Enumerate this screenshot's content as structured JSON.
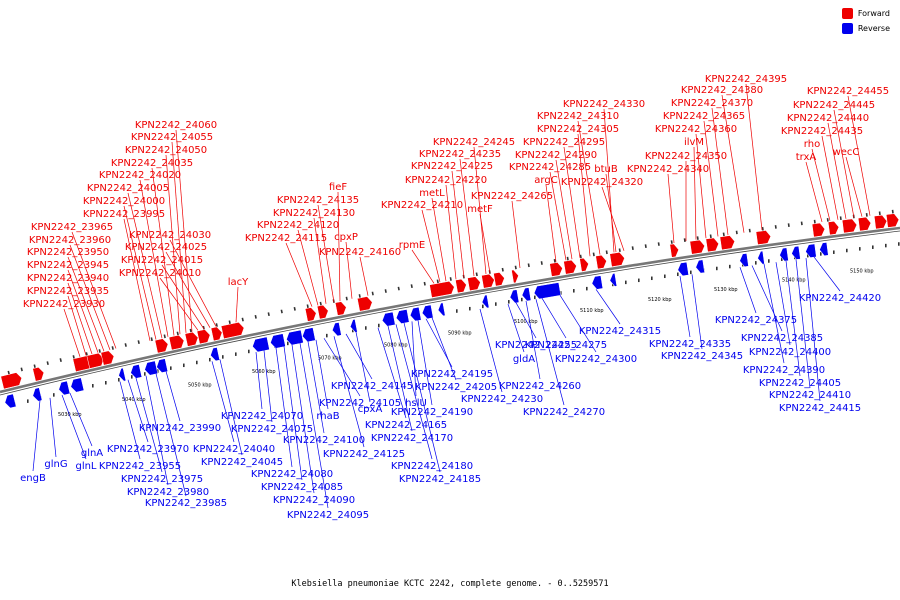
{
  "legend": [
    {
      "label": "Forward",
      "color": "#ee0000"
    },
    {
      "label": "Reverse",
      "color": "#0000ee"
    }
  ],
  "footer": "Klebsiella pneumoniae KCTC 2242, complete genome. - 0..5259571",
  "colors": {
    "forward": "#ee0000",
    "reverse": "#0000ee",
    "backbone": "#777777"
  },
  "ticks": [
    "5030 kbp",
    "5040 kbp",
    "5050 kbp",
    "5060 kbp",
    "5070 kbp",
    "5080 kbp",
    "5090 kbp",
    "5100 kbp",
    "5110 kbp",
    "5120 kbp",
    "5130 kbp",
    "5140 kbp",
    "5150 kbp"
  ],
  "forward_labels": [
    "KPN2242_23930",
    "KPN2242_23935",
    "KPN2242_23940",
    "KPN2242_23945",
    "KPN2242_23950",
    "KPN2242_23960",
    "KPN2242_23965",
    "KPN2242_23995",
    "KPN2242_24000",
    "KPN2242_24005",
    "KPN2242_24020",
    "KPN2242_24035",
    "KPN2242_24050",
    "KPN2242_24055",
    "KPN2242_24060",
    "KPN2242_24010",
    "KPN2242_24015",
    "KPN2242_24025",
    "KPN2242_24030",
    "lacY",
    "KPN2242_24115",
    "KPN2242_24120",
    "KPN2242_24130",
    "KPN2242_24135",
    "fieF",
    "cpxP",
    "KPN2242_24160",
    "rpmE",
    "KPN2242_24210",
    "metL",
    "KPN2242_24220",
    "KPN2242_24225",
    "KPN2242_24235",
    "KPN2242_24245",
    "metF",
    "KPN2242_24265",
    "argC",
    "KPN2242_24285",
    "KPN2242_24290",
    "KPN2242_24295",
    "KPN2242_24305",
    "KPN2242_24310",
    "KPN2242_24330",
    "btuB",
    "KPN2242_24320",
    "KPN2242_24340",
    "KPN2242_24350",
    "ilvM",
    "KPN2242_24360",
    "KPN2242_24365",
    "KPN2242_24370",
    "KPN2242_24380",
    "KPN2242_24395",
    "trxA",
    "rho",
    "KPN2242_24435",
    "KPN2242_24440",
    "KPN2242_24445",
    "wecC",
    "KPN2242_24455"
  ],
  "reverse_labels": [
    "engB",
    "glnG",
    "glnL",
    "glnA",
    "KPN2242_23955",
    "KPN2242_23970",
    "KPN2242_23975",
    "KPN2242_23980",
    "KPN2242_23985",
    "KPN2242_23990",
    "KPN2242_24040",
    "KPN2242_24045",
    "KPN2242_24070",
    "KPN2242_24075",
    "KPN2242_24080",
    "KPN2242_24085",
    "KPN2242_24090",
    "KPN2242_24095",
    "KPN2242_24100",
    "rhaB",
    "KPN2242_24105",
    "KPN2242_24125",
    "KPN2242_24145",
    "cpxA",
    "KPN2242_24165",
    "KPN2242_24170",
    "KPN2242_24180",
    "KPN2242_24185",
    "hslU",
    "KPN2242_24190",
    "KPN2242_24195",
    "KPN2242_24205",
    "KPN2242_24230",
    "gldA",
    "KPN2242_24255",
    "KPN2242_24260",
    "KPN2242_24270",
    "KPN2242_24275",
    "KPN2242_24300",
    "KPN2242_24315",
    "KPN2242_24335",
    "KPN2242_24345",
    "KPN2242_24375",
    "KPN2242_24385",
    "KPN2242_24390",
    "KPN2242_24400",
    "KPN2242_24405",
    "KPN2242_24410",
    "KPN2242_24415",
    "KPN2242_24420"
  ]
}
